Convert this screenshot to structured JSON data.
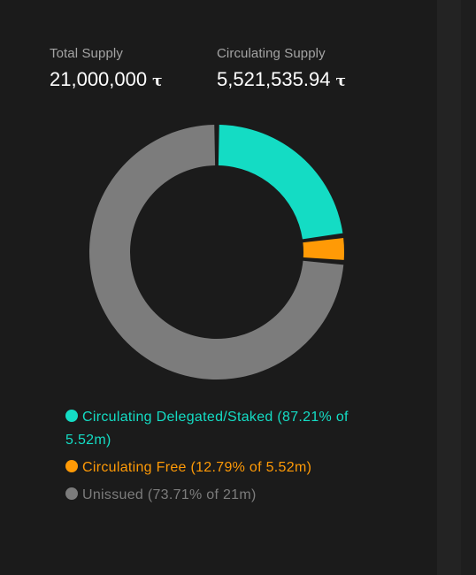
{
  "stats": {
    "total_supply_label": "Total Supply",
    "total_supply_value": "21,000,000",
    "circulating_supply_label": "Circulating Supply",
    "circulating_supply_value": "5,521,535.94",
    "currency_symbol": "τ"
  },
  "chart_data": {
    "type": "pie",
    "style": "donut",
    "title": "",
    "series": [
      {
        "label": "Circulating Delegated/Staked (87.21% of 5.52m)",
        "value": 4.815,
        "color": "#14dcc4"
      },
      {
        "label": "Circulating Free (12.79% of 5.52m)",
        "value": 0.706,
        "color": "#ff9a06"
      },
      {
        "label": "Unissued (73.71% of 21m)",
        "value": 15.479,
        "color": "#7c7c7c"
      }
    ],
    "legend_position": "bottom"
  }
}
